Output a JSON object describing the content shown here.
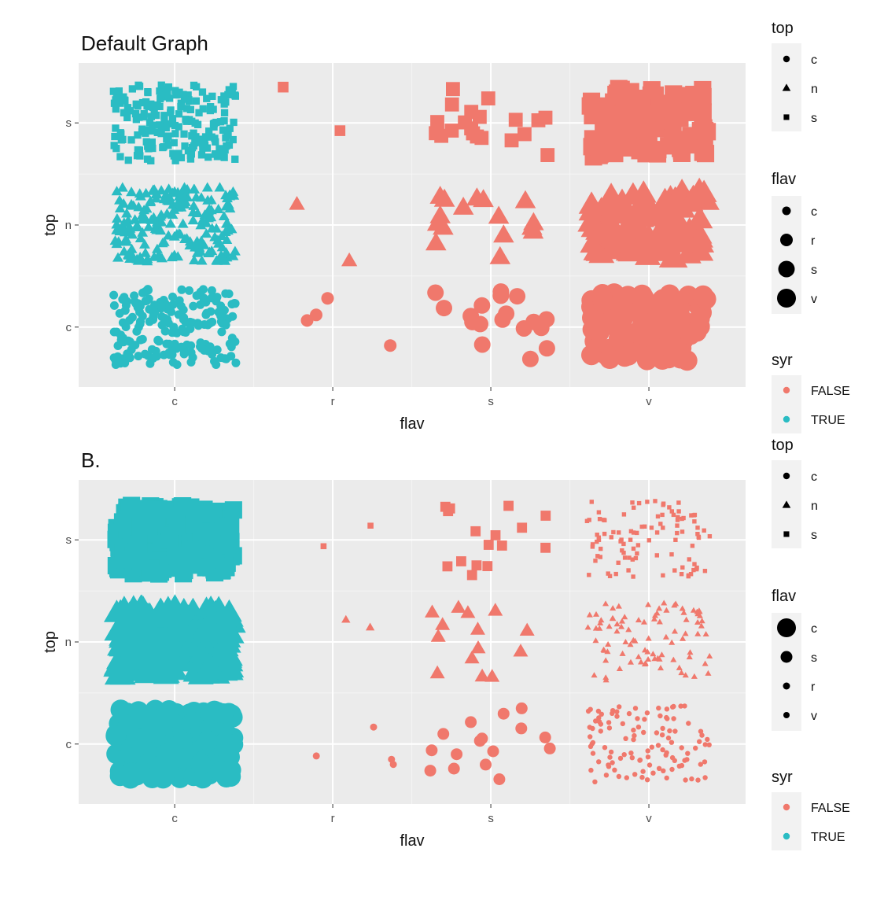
{
  "chart_data": [
    {
      "type": "scatter",
      "title": "Default Graph",
      "xlabel": "flav",
      "ylabel": "top",
      "x_categories": [
        "c",
        "r",
        "s",
        "v"
      ],
      "y_categories": [
        "c",
        "n",
        "s"
      ],
      "jitter": true,
      "approx_point_counts": {
        "c": {
          "c": 200,
          "n": 200,
          "s": 200
        },
        "r": {
          "c": 4,
          "n": 2,
          "s": 2
        },
        "s": {
          "c": 18,
          "n": 16,
          "s": 20
        },
        "v": {
          "c": 110,
          "n": 110,
          "s": 110
        }
      },
      "legends": {
        "shape": {
          "title": "top",
          "entries": [
            "c",
            "n",
            "s"
          ]
        },
        "size": {
          "title": "flav",
          "entries": [
            "c",
            "r",
            "s",
            "v"
          ]
        },
        "color": {
          "title": "syr",
          "entries": [
            {
              "label": "FALSE",
              "color": "#F0786C"
            },
            {
              "label": "TRUE",
              "color": "#2ABCC3"
            }
          ]
        }
      }
    },
    {
      "type": "scatter",
      "title": "B.",
      "xlabel": "flav",
      "ylabel": "top",
      "x_categories": [
        "c",
        "r",
        "s",
        "v"
      ],
      "y_categories": [
        "c",
        "n",
        "s"
      ],
      "jitter": true,
      "approx_point_counts": {
        "c": {
          "c": 220,
          "n": 220,
          "s": 220
        },
        "r": {
          "c": 4,
          "n": 2,
          "s": 2
        },
        "s": {
          "c": 16,
          "n": 14,
          "s": 16
        },
        "v": {
          "c": 110,
          "n": 90,
          "s": 100
        }
      },
      "legends": {
        "shape": {
          "title": "top",
          "entries": [
            "c",
            "n",
            "s"
          ]
        },
        "size": {
          "title": "flav",
          "entries": [
            "c",
            "s",
            "r",
            "v"
          ]
        },
        "color": {
          "title": "syr",
          "entries": [
            {
              "label": "FALSE",
              "color": "#F0786C"
            },
            {
              "label": "TRUE",
              "color": "#2ABCC3"
            }
          ]
        }
      }
    }
  ]
}
